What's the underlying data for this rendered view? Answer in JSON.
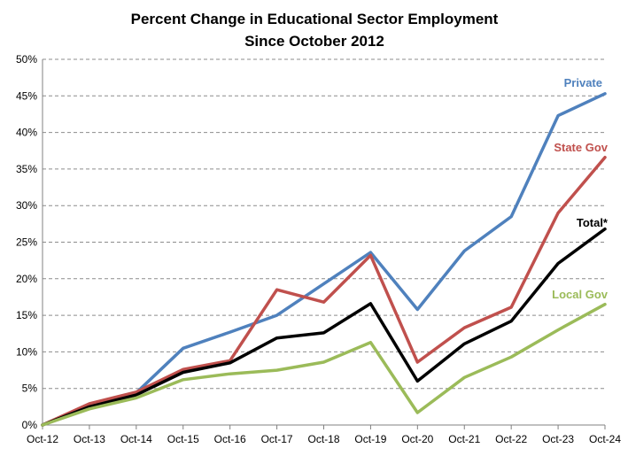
{
  "chart_data": {
    "type": "line",
    "title": [
      "Percent Change in Educational Sector Employment",
      "Since October 2012"
    ],
    "xlabel": "",
    "ylabel": "",
    "categories": [
      "Oct-12",
      "Oct-13",
      "Oct-14",
      "Oct-15",
      "Oct-16",
      "Oct-17",
      "Oct-18",
      "Oct-19",
      "Oct-20",
      "Oct-21",
      "Oct-22",
      "Oct-23",
      "Oct-24"
    ],
    "ylim": [
      0,
      50
    ],
    "yticks": [
      0,
      5,
      10,
      15,
      20,
      25,
      30,
      35,
      40,
      45,
      50
    ],
    "ytick_labels": [
      "0%",
      "5%",
      "10%",
      "15%",
      "20%",
      "25%",
      "30%",
      "35%",
      "40%",
      "45%",
      "50%"
    ],
    "grid": true,
    "legend": "inline-right",
    "series": [
      {
        "name": "Private",
        "color": "#4f81bd",
        "values": [
          0,
          2.5,
          4.4,
          10.5,
          12.7,
          15.0,
          19.3,
          23.6,
          15.8,
          23.8,
          28.5,
          42.3,
          45.3
        ]
      },
      {
        "name": "State Gov",
        "color": "#c0504d",
        "values": [
          0,
          2.9,
          4.5,
          7.6,
          8.8,
          18.5,
          16.8,
          23.2,
          8.6,
          13.3,
          16.1,
          29.0,
          36.6
        ]
      },
      {
        "name": "Total*",
        "color": "#000000",
        "values": [
          0,
          2.5,
          4.1,
          7.2,
          8.5,
          11.9,
          12.6,
          16.6,
          6.0,
          11.1,
          14.2,
          22.1,
          26.8
        ]
      },
      {
        "name": "Local Gov",
        "color": "#9bbb59",
        "values": [
          0,
          2.2,
          3.7,
          6.2,
          7.0,
          7.5,
          8.6,
          11.3,
          1.7,
          6.5,
          9.3,
          13.0,
          16.5
        ]
      }
    ]
  }
}
